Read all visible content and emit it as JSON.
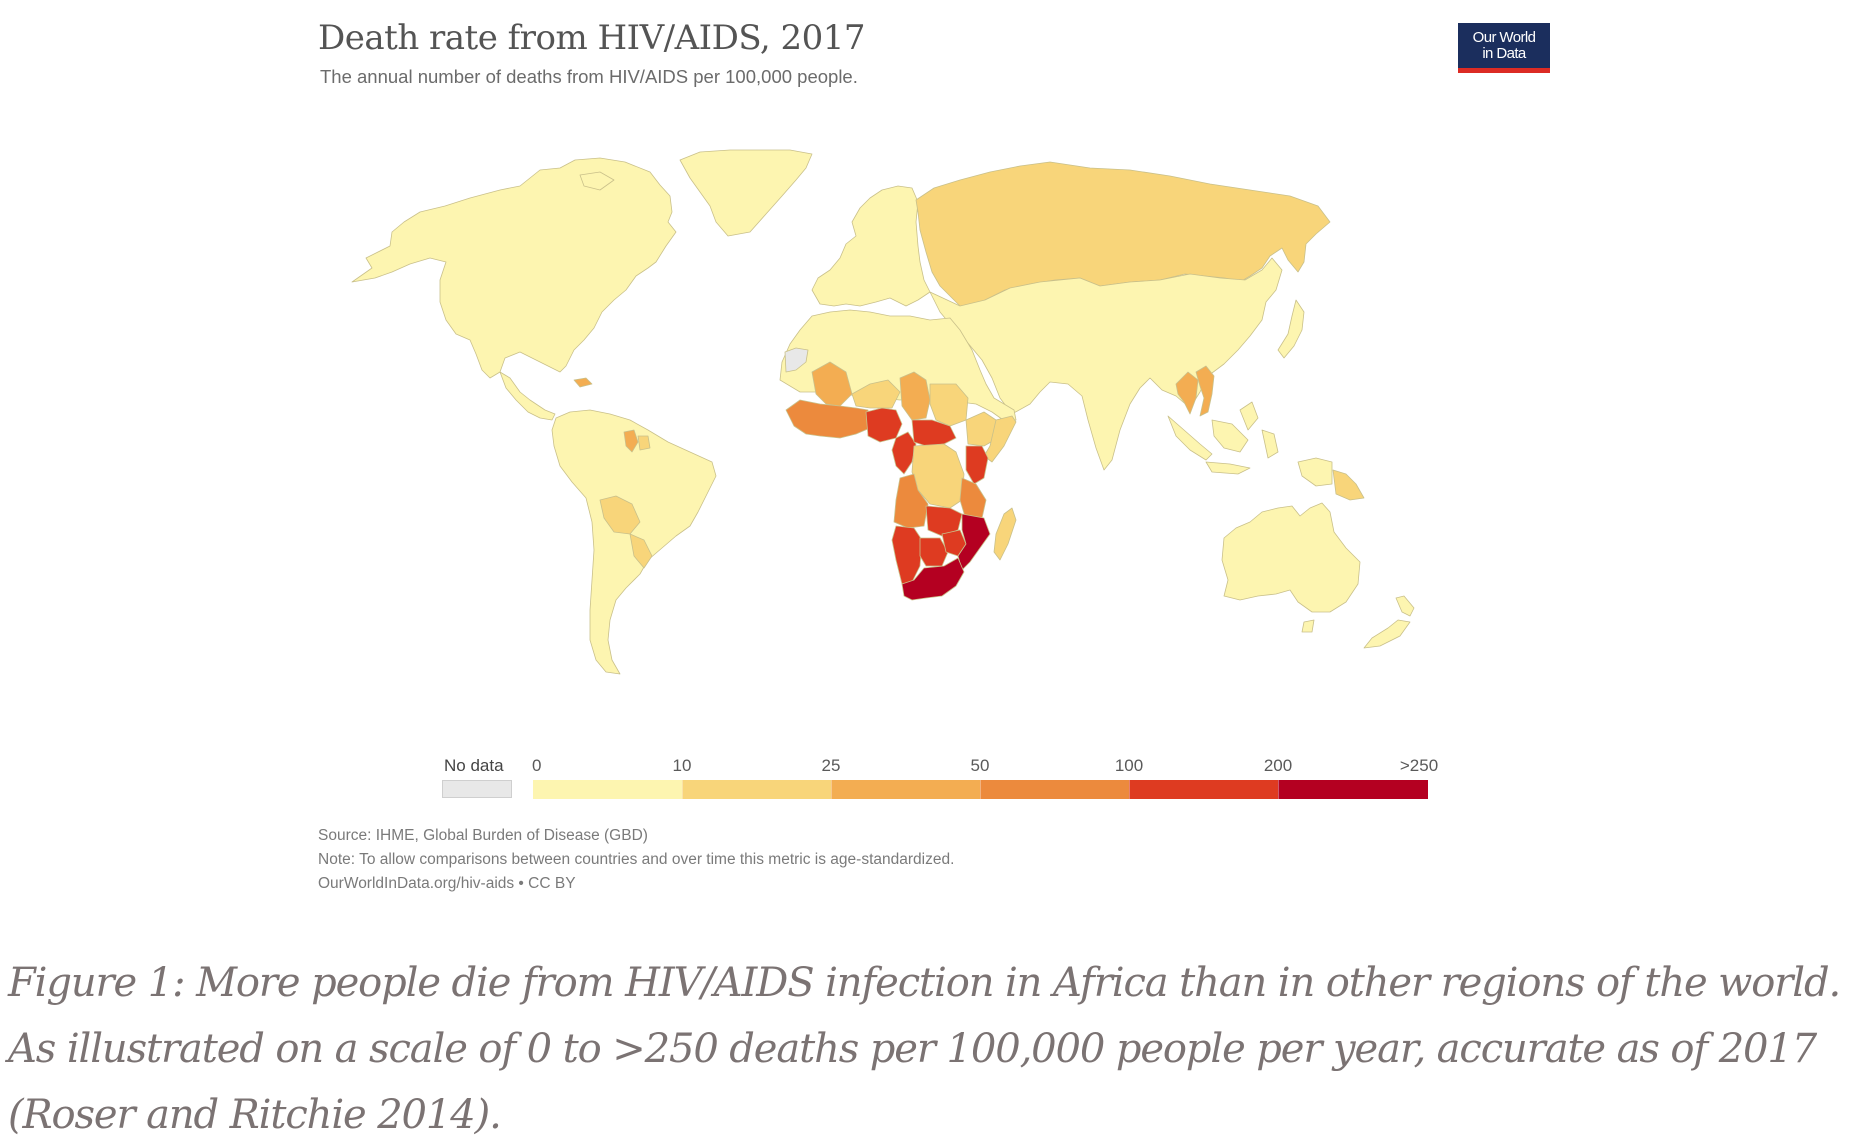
{
  "chart": {
    "title": "Death rate from HIV/AIDS, 2017",
    "subtitle": "The annual number of deaths from HIV/AIDS per 100,000 people.",
    "logo": {
      "line1": "Our World",
      "line2": "in Data",
      "bg_color": "#1b2e5d",
      "accent_color": "#dc2b24"
    }
  },
  "chart_data": {
    "type": "choropleth-map",
    "title": "Death rate from HIV/AIDS, 2017",
    "subtitle": "The annual number of deaths from HIV/AIDS per 100,000 people.",
    "unit": "deaths per 100,000 people",
    "year": 2017,
    "legend": {
      "no_data_label": "No data",
      "no_data_color": "#e8e8e8",
      "breaks": [
        "0",
        "10",
        "25",
        "50",
        "100",
        "200",
        ">250"
      ],
      "bins": [
        {
          "range": "0-10",
          "color": "#fdf5b0"
        },
        {
          "range": "10-25",
          "color": "#f8d57a"
        },
        {
          "range": "25-50",
          "color": "#f3ad52"
        },
        {
          "range": "50-100",
          "color": "#ec8a3d"
        },
        {
          "range": "100-200",
          "color": "#de3b21"
        },
        {
          "range": "200-250+",
          "color": "#b40021"
        }
      ]
    },
    "regions": [
      {
        "name": "North America",
        "bin": 0
      },
      {
        "name": "Greenland",
        "bin": 0
      },
      {
        "name": "Central America",
        "bin": 0
      },
      {
        "name": "Haiti",
        "bin": 2
      },
      {
        "name": "Guyana",
        "bin": 2
      },
      {
        "name": "Suriname",
        "bin": 1
      },
      {
        "name": "South America",
        "bin": 0
      },
      {
        "name": "Bolivia",
        "bin": 1
      },
      {
        "name": "Paraguay",
        "bin": 1
      },
      {
        "name": "Europe",
        "bin": 0
      },
      {
        "name": "Russia",
        "bin": 1
      },
      {
        "name": "Asia",
        "bin": 0
      },
      {
        "name": "Thailand",
        "bin": 2
      },
      {
        "name": "Vietnam",
        "bin": 2
      },
      {
        "name": "Papua New Guinea",
        "bin": 1
      },
      {
        "name": "Australia",
        "bin": 0
      },
      {
        "name": "New Zealand",
        "bin": 0
      },
      {
        "name": "North Africa",
        "bin": 0
      },
      {
        "name": "Western Sahara",
        "bin": "no_data"
      },
      {
        "name": "Mali",
        "bin": 2
      },
      {
        "name": "Niger",
        "bin": 1
      },
      {
        "name": "Chad",
        "bin": 2
      },
      {
        "name": "Sudan",
        "bin": 1
      },
      {
        "name": "Ethiopia",
        "bin": 1
      },
      {
        "name": "Somalia",
        "bin": 1
      },
      {
        "name": "West Africa coast",
        "bin": 3
      },
      {
        "name": "Nigeria",
        "bin": 4
      },
      {
        "name": "Cameroon",
        "bin": 4
      },
      {
        "name": "Central African Republic",
        "bin": 4
      },
      {
        "name": "DR Congo",
        "bin": 1
      },
      {
        "name": "Kenya",
        "bin": 4
      },
      {
        "name": "Tanzania",
        "bin": 3
      },
      {
        "name": "Angola",
        "bin": 3
      },
      {
        "name": "Zambia",
        "bin": 4
      },
      {
        "name": "Namibia",
        "bin": 4
      },
      {
        "name": "Botswana",
        "bin": 4
      },
      {
        "name": "Zimbabwe",
        "bin": 4
      },
      {
        "name": "Mozambique",
        "bin": 5
      },
      {
        "name": "South Africa",
        "bin": 5
      },
      {
        "name": "Madagascar",
        "bin": 1
      }
    ]
  },
  "notes": {
    "source": "Source: IHME, Global Burden of Disease (GBD)",
    "note": "Note: To allow comparisons between countries and over time this metric is age-standardized.",
    "url": "OurWorldInData.org/hiv-aids • CC BY"
  },
  "caption": "Figure 1: More people die from HIV/AIDS infection in Africa than in other regions of the world. As illustrated on a scale of 0 to >250 deaths per 100,000 people per year, accurate as of 2017 (Roser and Ritchie 2014)."
}
